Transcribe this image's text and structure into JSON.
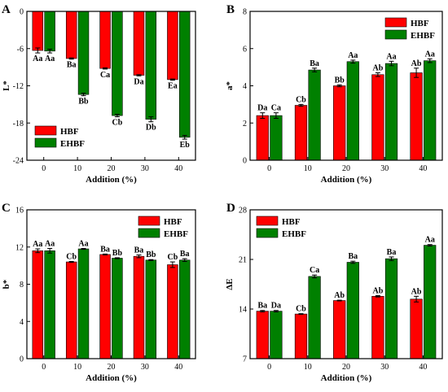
{
  "colors": {
    "HBF": "#ff0000",
    "EHBF": "#008000",
    "axis": "#000000",
    "error": "#000000"
  },
  "chart_data": [
    {
      "panel": "A",
      "type": "bar",
      "xlabel": "Addition (%)",
      "ylabel": "L*",
      "categories": [
        "0",
        "10",
        "20",
        "30",
        "40"
      ],
      "ylim": [
        -24,
        0
      ],
      "yticks": [
        0,
        -6,
        -12,
        -18,
        -24
      ],
      "invert_bars": true,
      "legend_position": "bottom-left",
      "series": [
        {
          "name": "HBF",
          "values": [
            -6.3,
            -7.6,
            -9.2,
            -10.3,
            -11.0
          ],
          "errors": [
            0.4,
            0.1,
            0.1,
            0.1,
            0.1
          ],
          "labels": [
            "Aa",
            "Ba",
            "Ca",
            "Da",
            "Ea"
          ]
        },
        {
          "name": "EHBF",
          "values": [
            -6.4,
            -13.4,
            -16.8,
            -17.4,
            -20.3
          ],
          "errors": [
            0.3,
            0.2,
            0.2,
            0.4,
            0.3
          ],
          "labels": [
            "Aa",
            "Bb",
            "Cb",
            "Db",
            "Eb"
          ]
        }
      ]
    },
    {
      "panel": "B",
      "type": "bar",
      "xlabel": "Addition (%)",
      "ylabel": "a*",
      "categories": [
        "0",
        "10",
        "20",
        "30",
        "40"
      ],
      "ylim": [
        0,
        8
      ],
      "yticks": [
        0,
        2,
        4,
        6,
        8
      ],
      "invert_bars": false,
      "legend_position": "top-right",
      "series": [
        {
          "name": "HBF",
          "values": [
            2.4,
            2.95,
            4.0,
            4.6,
            4.7
          ],
          "errors": [
            0.15,
            0.05,
            0.05,
            0.1,
            0.25
          ],
          "labels": [
            "Da",
            "Cb",
            "Bb",
            "Ab",
            "Ab"
          ]
        },
        {
          "name": "EHBF",
          "values": [
            2.4,
            4.85,
            5.3,
            5.2,
            5.35
          ],
          "errors": [
            0.15,
            0.1,
            0.08,
            0.12,
            0.1
          ],
          "labels": [
            "Ca",
            "Ba",
            "Aa",
            "Aa",
            "Aa"
          ]
        }
      ]
    },
    {
      "panel": "C",
      "type": "bar",
      "xlabel": "Addition (%)",
      "ylabel": "b*",
      "categories": [
        "0",
        "10",
        "20",
        "30",
        "40"
      ],
      "ylim": [
        0,
        16
      ],
      "yticks": [
        0,
        4,
        8,
        12,
        16
      ],
      "invert_bars": false,
      "legend_position": "top-right",
      "series": [
        {
          "name": "HBF",
          "values": [
            11.6,
            10.4,
            11.2,
            11.0,
            10.1
          ],
          "errors": [
            0.2,
            0.05,
            0.05,
            0.15,
            0.3
          ],
          "labels": [
            "Aa",
            "Cb",
            "Ba",
            "Ba",
            "Cb"
          ]
        },
        {
          "name": "EHBF",
          "values": [
            11.6,
            11.8,
            10.8,
            10.6,
            10.6
          ],
          "errors": [
            0.25,
            0.05,
            0.05,
            0.05,
            0.15
          ],
          "labels": [
            "Aa",
            "Aa",
            "Bb",
            "Bb",
            "Ba"
          ]
        }
      ]
    },
    {
      "panel": "D",
      "type": "bar",
      "xlabel": "Addition (%)",
      "ylabel": "ΔE",
      "categories": [
        "0",
        "10",
        "20",
        "30",
        "40"
      ],
      "ylim": [
        7,
        28
      ],
      "yticks": [
        7,
        14,
        21,
        28
      ],
      "invert_bars": false,
      "legend_position": "top-left",
      "series": [
        {
          "name": "HBF",
          "values": [
            13.7,
            13.3,
            15.2,
            15.8,
            15.4
          ],
          "errors": [
            0.1,
            0.05,
            0.05,
            0.1,
            0.4
          ],
          "labels": [
            "Ba",
            "Cb",
            "Ab",
            "Ab",
            "Ab"
          ]
        },
        {
          "name": "EHBF",
          "values": [
            13.7,
            18.6,
            20.6,
            21.1,
            23.0
          ],
          "errors": [
            0.1,
            0.2,
            0.15,
            0.25,
            0.1
          ],
          "labels": [
            "Da",
            "Ca",
            "Ba",
            "Ba",
            "Aa"
          ]
        }
      ]
    }
  ]
}
